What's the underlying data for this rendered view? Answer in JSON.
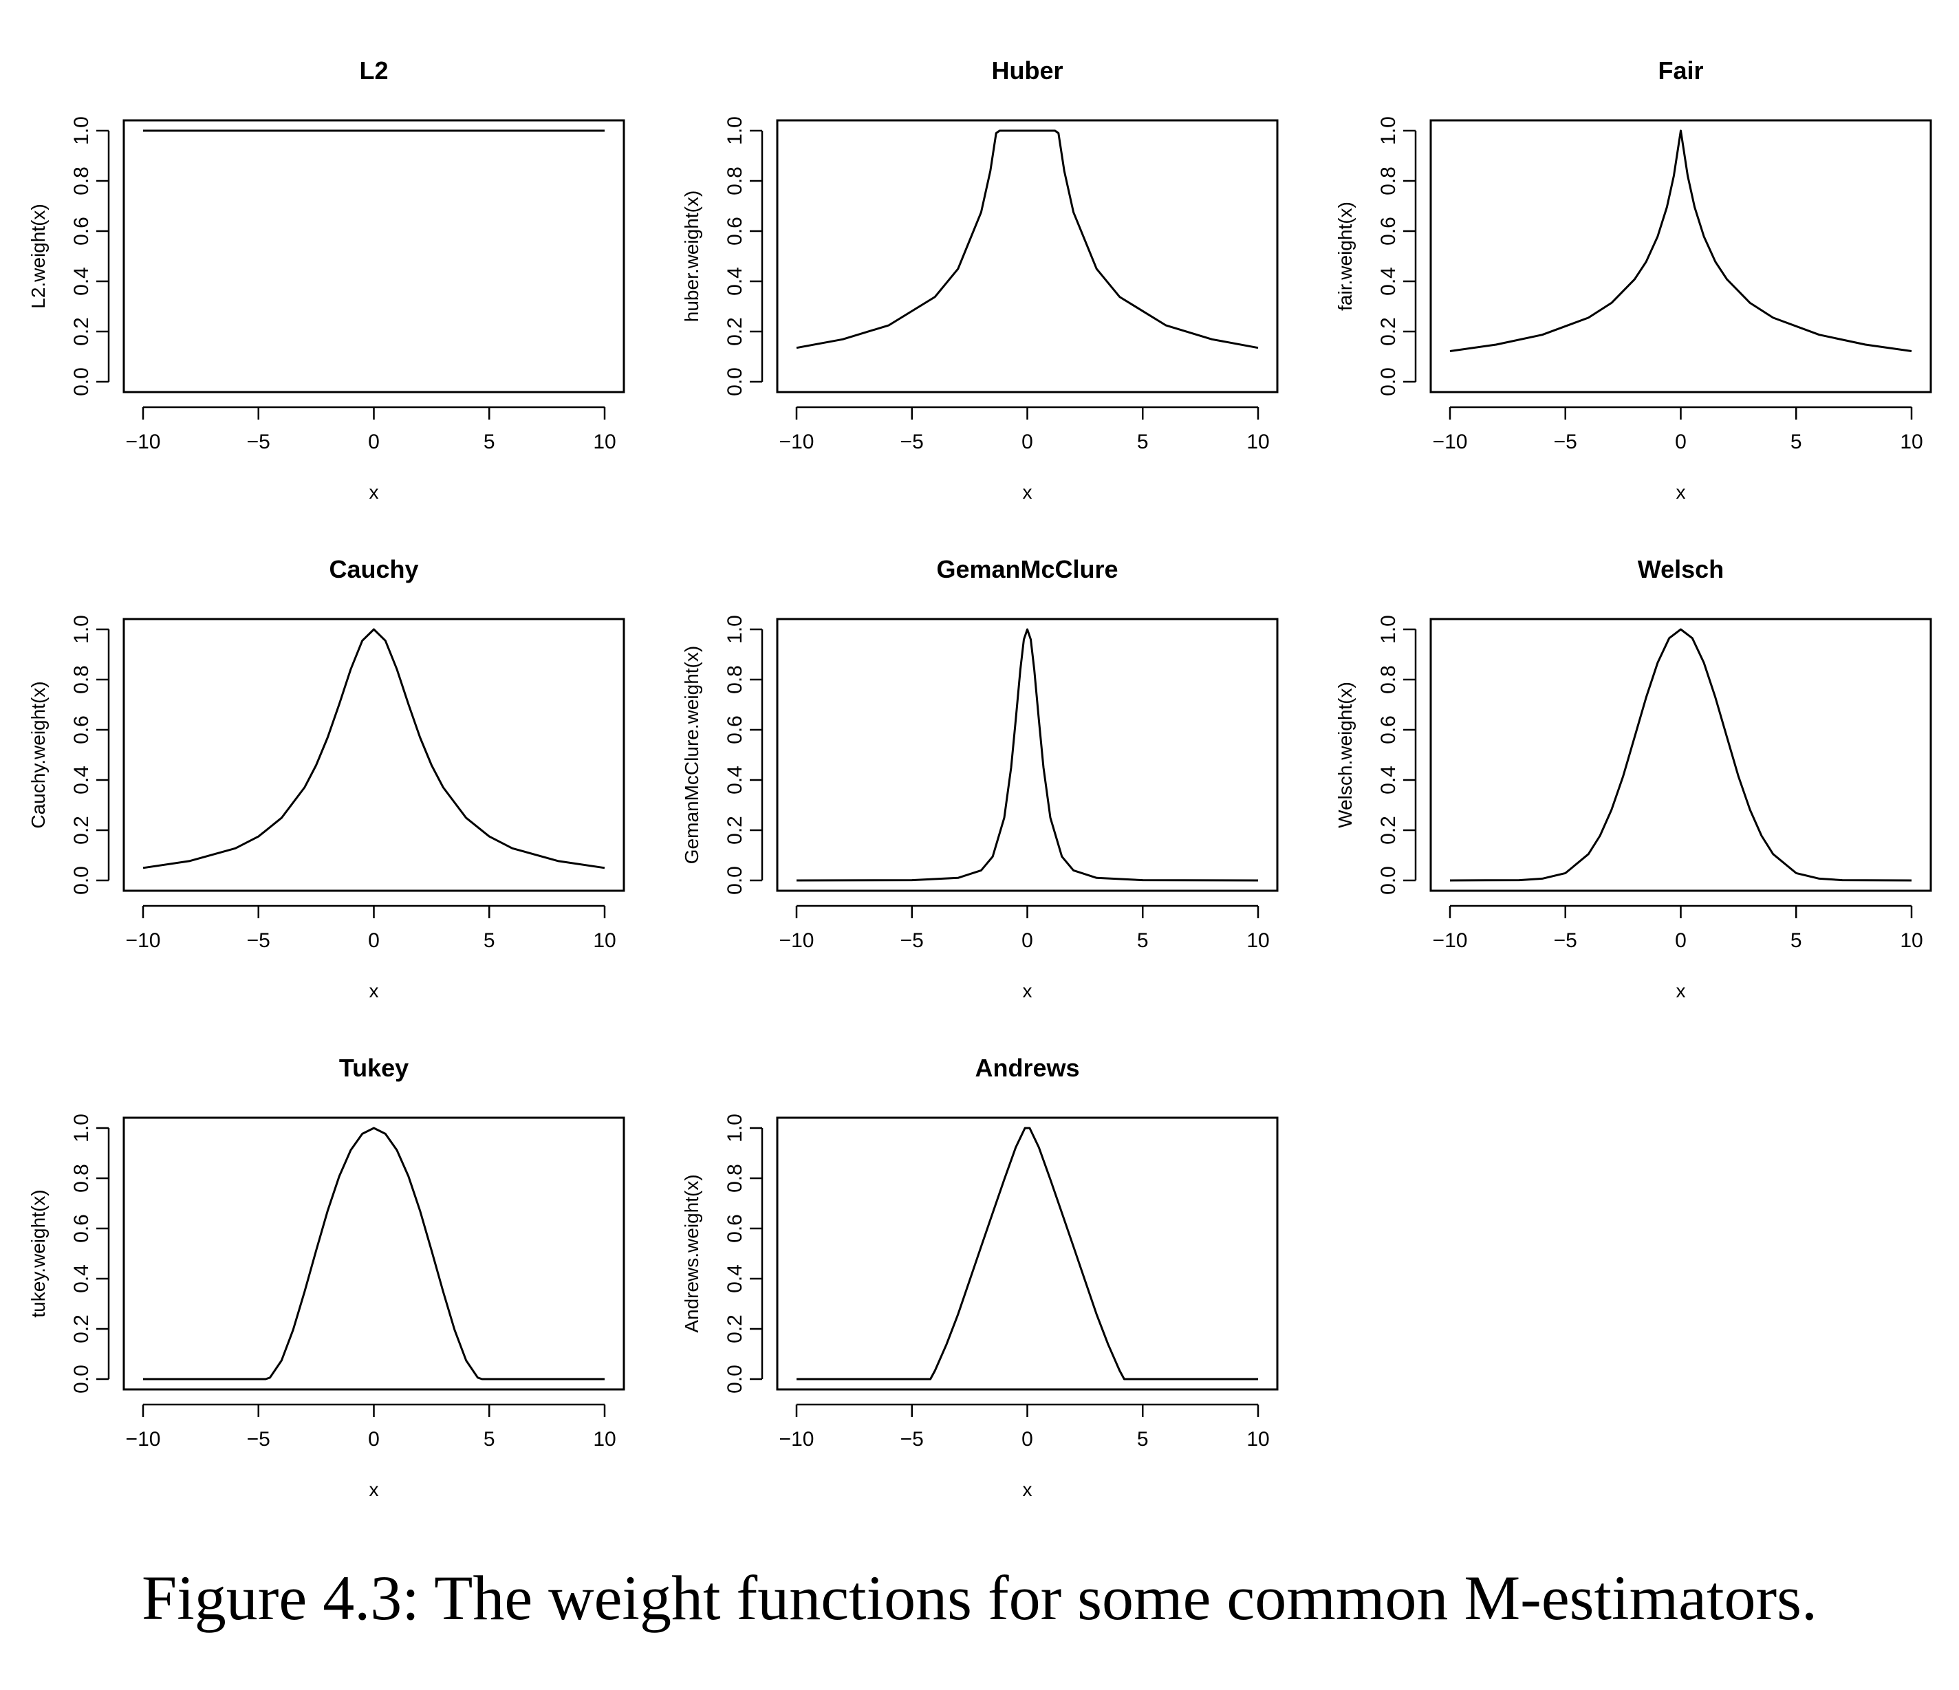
{
  "caption": "Figure 4.3: The weight functions for some common M-estimators.",
  "chart_data": [
    {
      "type": "line",
      "title": "L2",
      "xlabel": "x",
      "ylabel": "L2.weight(x)",
      "xlim": [
        -10,
        10
      ],
      "ylim": [
        0,
        1
      ],
      "xticks": [
        -10,
        -5,
        0,
        5,
        10
      ],
      "xtick_labels": [
        "−10",
        "−5",
        "0",
        "5",
        "10"
      ],
      "yticks": [
        0,
        0.2,
        0.4,
        0.6,
        0.8,
        1
      ],
      "ytick_labels": [
        "0.0",
        "0.2",
        "0.4",
        "0.6",
        "0.8",
        "1.0"
      ],
      "series": [
        {
          "name": "L2",
          "x": [
            -10,
            -5,
            0,
            5,
            10
          ],
          "y": [
            1,
            1,
            1,
            1,
            1
          ]
        }
      ]
    },
    {
      "type": "line",
      "title": "Huber",
      "xlabel": "x",
      "ylabel": "huber.weight(x)",
      "xlim": [
        -10,
        10
      ],
      "ylim": [
        0,
        1
      ],
      "xticks": [
        -10,
        -5,
        0,
        5,
        10
      ],
      "xtick_labels": [
        "−10",
        "−5",
        "0",
        "5",
        "10"
      ],
      "yticks": [
        0,
        0.2,
        0.4,
        0.6,
        0.8,
        1
      ],
      "ytick_labels": [
        "0.0",
        "0.2",
        "0.4",
        "0.6",
        "0.8",
        "1.0"
      ],
      "series": [
        {
          "name": "Huber",
          "x": [
            -10,
            -8,
            -6,
            -4,
            -3,
            -2,
            -1.6,
            -1.35,
            -1.2,
            0,
            1.2,
            1.35,
            1.6,
            2,
            3,
            4,
            6,
            8,
            10
          ],
          "y": [
            0.135,
            0.169,
            0.225,
            0.338,
            0.45,
            0.675,
            0.84,
            0.99,
            1,
            1,
            1,
            0.99,
            0.84,
            0.675,
            0.45,
            0.338,
            0.225,
            0.169,
            0.135
          ]
        }
      ]
    },
    {
      "type": "line",
      "title": "Fair",
      "xlabel": "x",
      "ylabel": "fair.weight(x)",
      "xlim": [
        -10,
        10
      ],
      "ylim": [
        0,
        1
      ],
      "xticks": [
        -10,
        -5,
        0,
        5,
        10
      ],
      "xtick_labels": [
        "−10",
        "−5",
        "0",
        "5",
        "10"
      ],
      "yticks": [
        0,
        0.2,
        0.4,
        0.6,
        0.8,
        1
      ],
      "ytick_labels": [
        "0.0",
        "0.2",
        "0.4",
        "0.6",
        "0.8",
        "1.0"
      ],
      "series": [
        {
          "name": "Fair",
          "x": [
            -10,
            -8,
            -6,
            -4,
            -3,
            -2,
            -1.5,
            -1,
            -0.6,
            -0.3,
            0,
            0.3,
            0.6,
            1,
            1.5,
            2,
            3,
            4,
            6,
            8,
            10
          ],
          "y": [
            0.122,
            0.148,
            0.187,
            0.255,
            0.314,
            0.408,
            0.478,
            0.579,
            0.696,
            0.82,
            1,
            0.82,
            0.696,
            0.579,
            0.478,
            0.408,
            0.314,
            0.255,
            0.187,
            0.148,
            0.122
          ]
        }
      ]
    },
    {
      "type": "line",
      "title": "Cauchy",
      "xlabel": "x",
      "ylabel": "Cauchy.weight(x)",
      "xlim": [
        -10,
        10
      ],
      "ylim": [
        0,
        1
      ],
      "xticks": [
        -10,
        -5,
        0,
        5,
        10
      ],
      "xtick_labels": [
        "−10",
        "−5",
        "0",
        "5",
        "10"
      ],
      "yticks": [
        0,
        0.2,
        0.4,
        0.6,
        0.8,
        1
      ],
      "ytick_labels": [
        "0.0",
        "0.2",
        "0.4",
        "0.6",
        "0.8",
        "1.0"
      ],
      "series": [
        {
          "name": "Cauchy",
          "x": [
            -10,
            -8,
            -6,
            -5,
            -4,
            -3,
            -2.5,
            -2,
            -1.5,
            -1,
            -0.5,
            0,
            0.5,
            1,
            1.5,
            2,
            2.5,
            3,
            4,
            5,
            6,
            8,
            10
          ],
          "y": [
            0.05,
            0.077,
            0.128,
            0.175,
            0.249,
            0.371,
            0.459,
            0.57,
            0.702,
            0.841,
            0.955,
            1,
            0.955,
            0.841,
            0.702,
            0.57,
            0.459,
            0.371,
            0.249,
            0.175,
            0.128,
            0.077,
            0.05
          ]
        }
      ]
    },
    {
      "type": "line",
      "title": "GemanMcClure",
      "xlabel": "x",
      "ylabel": "GemanMcClure.weight(x)",
      "xlim": [
        -10,
        10
      ],
      "ylim": [
        0,
        1
      ],
      "xticks": [
        -10,
        -5,
        0,
        5,
        10
      ],
      "xtick_labels": [
        "−10",
        "−5",
        "0",
        "5",
        "10"
      ],
      "yticks": [
        0,
        0.2,
        0.4,
        0.6,
        0.8,
        1
      ],
      "ytick_labels": [
        "0.0",
        "0.2",
        "0.4",
        "0.6",
        "0.8",
        "1.0"
      ],
      "series": [
        {
          "name": "GemanMcClure",
          "x": [
            -10,
            -5,
            -3,
            -2,
            -1.5,
            -1,
            -0.7,
            -0.5,
            -0.3,
            -0.15,
            0,
            0.15,
            0.3,
            0.5,
            0.7,
            1,
            1.5,
            2,
            3,
            5,
            10
          ],
          "y": [
            0,
            0.001,
            0.01,
            0.04,
            0.095,
            0.25,
            0.45,
            0.64,
            0.84,
            0.96,
            1,
            0.96,
            0.84,
            0.64,
            0.45,
            0.25,
            0.095,
            0.04,
            0.01,
            0.001,
            0
          ]
        }
      ]
    },
    {
      "type": "line",
      "title": "Welsch",
      "xlabel": "x",
      "ylabel": "Welsch.weight(x)",
      "xlim": [
        -10,
        10
      ],
      "ylim": [
        0,
        1
      ],
      "xticks": [
        -10,
        -5,
        0,
        5,
        10
      ],
      "xtick_labels": [
        "−10",
        "−5",
        "0",
        "5",
        "10"
      ],
      "yticks": [
        0,
        0.2,
        0.4,
        0.6,
        0.8,
        1
      ],
      "ytick_labels": [
        "0.0",
        "0.2",
        "0.4",
        "0.6",
        "0.8",
        "1.0"
      ],
      "series": [
        {
          "name": "Welsch",
          "x": [
            -10,
            -7,
            -6,
            -5,
            -4,
            -3.5,
            -3,
            -2.5,
            -2,
            -1.5,
            -1,
            -0.5,
            0,
            0.5,
            1,
            1.5,
            2,
            2.5,
            3,
            3.5,
            4,
            5,
            6,
            7,
            10
          ],
          "y": [
            0,
            0.001,
            0.007,
            0.029,
            0.105,
            0.178,
            0.281,
            0.414,
            0.571,
            0.729,
            0.867,
            0.965,
            1,
            0.965,
            0.867,
            0.729,
            0.571,
            0.414,
            0.281,
            0.178,
            0.105,
            0.029,
            0.007,
            0.001,
            0
          ]
        }
      ]
    },
    {
      "type": "line",
      "title": "Tukey",
      "xlabel": "x",
      "ylabel": "tukey.weight(x)",
      "xlim": [
        -10,
        10
      ],
      "ylim": [
        0,
        1
      ],
      "xticks": [
        -10,
        -5,
        0,
        5,
        10
      ],
      "xtick_labels": [
        "−10",
        "−5",
        "0",
        "5",
        "10"
      ],
      "yticks": [
        0,
        0.2,
        0.4,
        0.6,
        0.8,
        1
      ],
      "ytick_labels": [
        "0.0",
        "0.2",
        "0.4",
        "0.6",
        "0.8",
        "1.0"
      ],
      "series": [
        {
          "name": "Tukey",
          "x": [
            -10,
            -4.69,
            -4.5,
            -4,
            -3.5,
            -3,
            -2.5,
            -2,
            -1.5,
            -1,
            -0.5,
            0,
            0.5,
            1,
            1.5,
            2,
            2.5,
            3,
            3.5,
            4,
            4.5,
            4.69,
            10
          ],
          "y": [
            0,
            0,
            0.006,
            0.074,
            0.196,
            0.349,
            0.512,
            0.671,
            0.808,
            0.912,
            0.977,
            1,
            0.977,
            0.912,
            0.808,
            0.671,
            0.512,
            0.349,
            0.196,
            0.074,
            0.006,
            0,
            0
          ]
        }
      ]
    },
    {
      "type": "line",
      "title": "Andrews",
      "xlabel": "x",
      "ylabel": "Andrews.weight(x)",
      "xlim": [
        -10,
        10
      ],
      "ylim": [
        0,
        1
      ],
      "xticks": [
        -10,
        -5,
        0,
        5,
        10
      ],
      "xtick_labels": [
        "−10",
        "−5",
        "0",
        "5",
        "10"
      ],
      "yticks": [
        0,
        0.2,
        0.4,
        0.6,
        0.8,
        1
      ],
      "ytick_labels": [
        "0.0",
        "0.2",
        "0.4",
        "0.6",
        "0.8",
        "1.0"
      ],
      "series": [
        {
          "name": "Andrews",
          "x": [
            -10,
            -4.2,
            -4,
            -3.5,
            -3,
            -2.5,
            -2,
            -1.5,
            -1,
            -0.5,
            -0.1,
            0.1,
            0.5,
            1,
            1.5,
            2,
            2.5,
            3,
            3.5,
            4,
            4.2,
            10
          ],
          "y": [
            0,
            0,
            0.034,
            0.139,
            0.258,
            0.393,
            0.528,
            0.662,
            0.795,
            0.923,
            1,
            1,
            0.923,
            0.795,
            0.662,
            0.528,
            0.393,
            0.258,
            0.139,
            0.034,
            0,
            0
          ]
        }
      ]
    }
  ]
}
